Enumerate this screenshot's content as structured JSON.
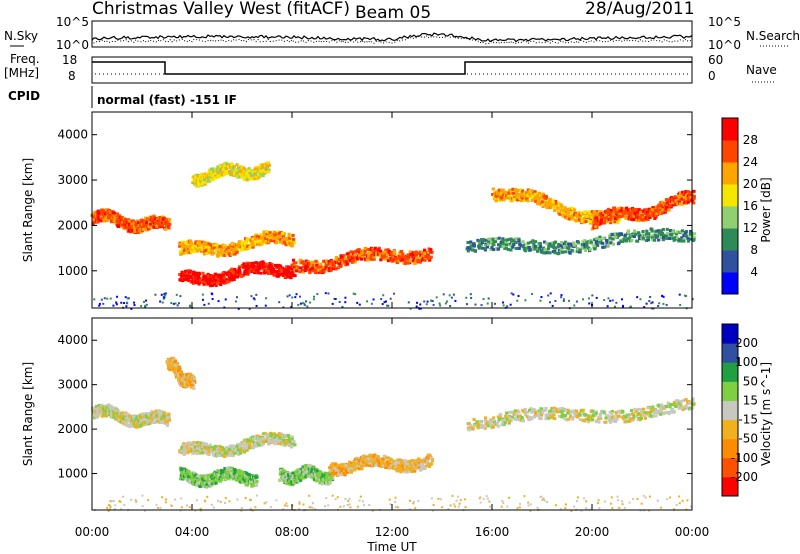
{
  "header": {
    "station": "Christmas Valley West (fitACF)",
    "beam": "Beam 05",
    "date": "28/Aug/2011"
  },
  "panels": {
    "nsky_label": "N.Sky",
    "nsearch_label": "N.Search",
    "nsky_ticks": [
      "10^5",
      "10^0"
    ],
    "nsearch_ticks": [
      "10^5",
      "10^0"
    ],
    "freq_label": "Freq.",
    "freq_unit": "[MHz]",
    "freq_ticks": [
      "18",
      "8"
    ],
    "nave_label": "Nave",
    "nave_ticks": [
      "60",
      "0"
    ],
    "cpid_label": "CPID",
    "cpid_text": "normal (fast) -151 IF"
  },
  "chart_data": [
    {
      "type": "heatmap",
      "name": "power",
      "ylabel": "Slant Range [km]",
      "yticks": [
        "4000",
        "3000",
        "2000",
        "1000"
      ],
      "ylim": [
        180,
        4500
      ],
      "xlim": [
        0,
        24
      ],
      "colorbar_label": "Power [dB]",
      "colorbar_ticks": [
        "28",
        "24",
        "20",
        "16",
        "12",
        "8",
        "4"
      ],
      "colors": [
        "#0000ff",
        "#3050a0",
        "#2e8b57",
        "#90d070",
        "#f5e600",
        "#ffa500",
        "#ff4500",
        "#ff0000"
      ],
      "echo_bands": [
        {
          "x": [
            0,
            3
          ],
          "y": [
            2200,
            2000
          ],
          "level": 6
        },
        {
          "x": [
            3.5,
            8
          ],
          "y": [
            1450,
            1750
          ],
          "level": 5
        },
        {
          "x": [
            3.5,
            8
          ],
          "y": [
            850,
            1100
          ],
          "level": 7
        },
        {
          "x": [
            8,
            13.5
          ],
          "y": [
            1150,
            1450
          ],
          "level": 6
        },
        {
          "x": [
            4,
            7
          ],
          "y": [
            3100,
            3300
          ],
          "level": 4
        },
        {
          "x": [
            16,
            21
          ],
          "y": [
            2800,
            2100
          ],
          "level": 5
        },
        {
          "x": [
            20,
            24
          ],
          "y": [
            2100,
            2600
          ],
          "level": 6
        },
        {
          "x": [
            15,
            24
          ],
          "y": [
            1500,
            1800
          ],
          "level": 2
        }
      ]
    },
    {
      "type": "heatmap",
      "name": "velocity",
      "ylabel": "Slant Range [km]",
      "yticks": [
        "4000",
        "3000",
        "2000",
        "1000"
      ],
      "ylim": [
        180,
        4500
      ],
      "xlim": [
        0,
        24
      ],
      "xlabel": "Time UT",
      "xticks": [
        "00:00",
        "04:00",
        "08:00",
        "12:00",
        "16:00",
        "20:00",
        "00:00"
      ],
      "colorbar_label": "Velocity [m s^-1]",
      "colorbar_ticks": [
        "200",
        "100",
        "50",
        "15",
        "-15",
        "-50",
        "-100",
        "-200"
      ],
      "colors": [
        "#ff0000",
        "#ff5000",
        "#ff8c00",
        "#f0b020",
        "#c8c8c0",
        "#7fd040",
        "#20a040",
        "#3050a0",
        "#0000c0"
      ],
      "echo_bands": [
        {
          "x": [
            0,
            3
          ],
          "y": [
            2400,
            2200
          ],
          "level": 4
        },
        {
          "x": [
            3.5,
            8
          ],
          "y": [
            1500,
            1800
          ],
          "level": 4
        },
        {
          "x": [
            3.5,
            6.5
          ],
          "y": [
            950,
            950
          ],
          "level": 5
        },
        {
          "x": [
            7.5,
            9.5
          ],
          "y": [
            1000,
            1000
          ],
          "level": 5
        },
        {
          "x": [
            9.5,
            13.5
          ],
          "y": [
            1200,
            1300
          ],
          "level": 3
        },
        {
          "x": [
            15,
            24
          ],
          "y": [
            2200,
            2500
          ],
          "level": 4
        },
        {
          "x": [
            3,
            4
          ],
          "y": [
            3500,
            3000
          ],
          "level": 3
        }
      ]
    }
  ]
}
